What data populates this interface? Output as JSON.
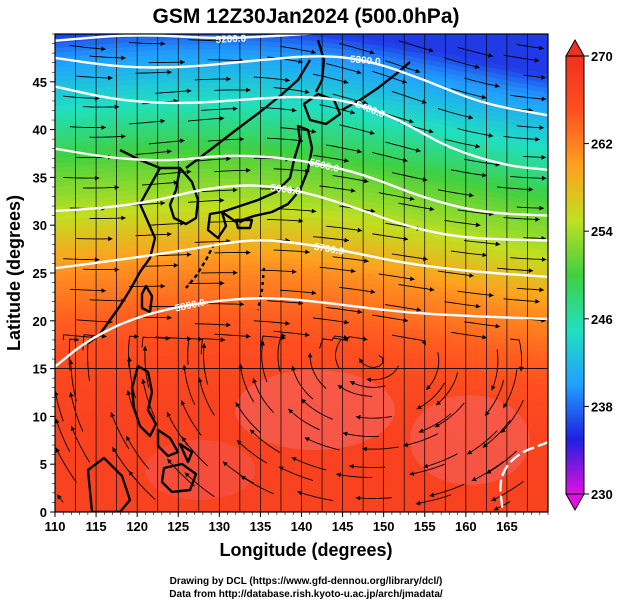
{
  "chart_data": {
    "type": "heatmap",
    "title": "GSM 12Z30Jan2024 (500.0hPa)",
    "xlabel": "Longitude (degrees)",
    "ylabel": "Latitude  (degrees)",
    "xlim": [
      110,
      170
    ],
    "ylim": [
      0,
      50
    ],
    "x_ticks": [
      110,
      115,
      120,
      125,
      130,
      135,
      140,
      145,
      150,
      155,
      160,
      165
    ],
    "y_ticks": [
      0,
      5,
      10,
      15,
      20,
      25,
      30,
      35,
      40,
      45
    ],
    "grid": true,
    "colorbar": {
      "min": 230,
      "max": 270,
      "tick_values": [
        230,
        238,
        246,
        254,
        262,
        270
      ],
      "palette": [
        "#e010e0",
        "#2020e0",
        "#20a0ff",
        "#20e0c0",
        "#40d040",
        "#c0e020",
        "#ffa020",
        "#ff5020",
        "#f03020"
      ]
    },
    "temperature_by_latitude": [
      {
        "lat": 0,
        "t": 267
      },
      {
        "lat": 10,
        "t": 267
      },
      {
        "lat": 15,
        "t": 266
      },
      {
        "lat": 20,
        "t": 264
      },
      {
        "lat": 25,
        "t": 261
      },
      {
        "lat": 28,
        "t": 258
      },
      {
        "lat": 32,
        "t": 254
      },
      {
        "lat": 36,
        "t": 251
      },
      {
        "lat": 40,
        "t": 247
      },
      {
        "lat": 44,
        "t": 243
      },
      {
        "lat": 48,
        "t": 239
      },
      {
        "lat": 50,
        "t": 236
      }
    ],
    "height_contours": [
      {
        "label": "5200.0",
        "points": [
          [
            110,
            49.3
          ],
          [
            120,
            50
          ],
          [
            130,
            49.5
          ],
          [
            137,
            49.8
          ],
          [
            145,
            50.3
          ]
        ]
      },
      {
        "label": "5300.0",
        "points": [
          [
            110,
            47.5
          ],
          [
            118,
            46.5
          ],
          [
            126,
            46.5
          ],
          [
            134,
            47.2
          ],
          [
            142,
            47.8
          ],
          [
            148,
            47.3
          ],
          [
            155,
            45.2
          ],
          [
            162,
            42.7
          ],
          [
            170,
            41.5
          ]
        ]
      },
      {
        "label": "5400.0",
        "points": [
          [
            110,
            44.5
          ],
          [
            118,
            43
          ],
          [
            126,
            42.7
          ],
          [
            134,
            43.2
          ],
          [
            140,
            43.5
          ],
          [
            146,
            43
          ],
          [
            152,
            41
          ],
          [
            158,
            38
          ],
          [
            165,
            36.2
          ],
          [
            170,
            35.8
          ]
        ]
      },
      {
        "label": "5500.0",
        "points": [
          [
            110,
            38
          ],
          [
            117,
            37
          ],
          [
            124,
            36.7
          ],
          [
            130,
            37.3
          ],
          [
            136,
            37.2
          ],
          [
            142,
            36.5
          ],
          [
            148,
            35.2
          ],
          [
            155,
            32.8
          ],
          [
            162,
            31.3
          ],
          [
            170,
            31
          ]
        ]
      },
      {
        "label": "5600.0",
        "points": [
          [
            110,
            31.5
          ],
          [
            116,
            31.8
          ],
          [
            122,
            32.5
          ],
          [
            128,
            33.8
          ],
          [
            134,
            34.3
          ],
          [
            140,
            33.6
          ],
          [
            147,
            31.7
          ],
          [
            153,
            29.8
          ],
          [
            160,
            28.6
          ],
          [
            170,
            28.4
          ]
        ]
      },
      {
        "label": "5700.0",
        "points": [
          [
            110,
            25.5
          ],
          [
            118,
            26.4
          ],
          [
            126,
            27.4
          ],
          [
            134,
            28.6
          ],
          [
            140,
            28.1
          ],
          [
            146,
            27.2
          ],
          [
            152,
            26.1
          ],
          [
            160,
            25.2
          ],
          [
            170,
            24.6
          ]
        ]
      },
      {
        "label": "5800.0",
        "points": [
          [
            110,
            15.2
          ],
          [
            114,
            18
          ],
          [
            120,
            20.5
          ],
          [
            128,
            22
          ],
          [
            136,
            22.5
          ],
          [
            144,
            21.8
          ],
          [
            152,
            20.9
          ],
          [
            160,
            20.5
          ],
          [
            170,
            20.2
          ]
        ]
      },
      {
        "label": "",
        "points": [
          [
            170,
            7.3
          ],
          [
            166,
            6
          ],
          [
            164,
            3.5
          ],
          [
            164.5,
            0
          ]
        ]
      }
    ]
  },
  "caption": {
    "line1": "Drawing by DCL (https://www.gfd-dennou.org/library/dcl/)",
    "line2": "Data from http://database.rish.kyoto-u.ac.jp/arch/jmadata/"
  }
}
